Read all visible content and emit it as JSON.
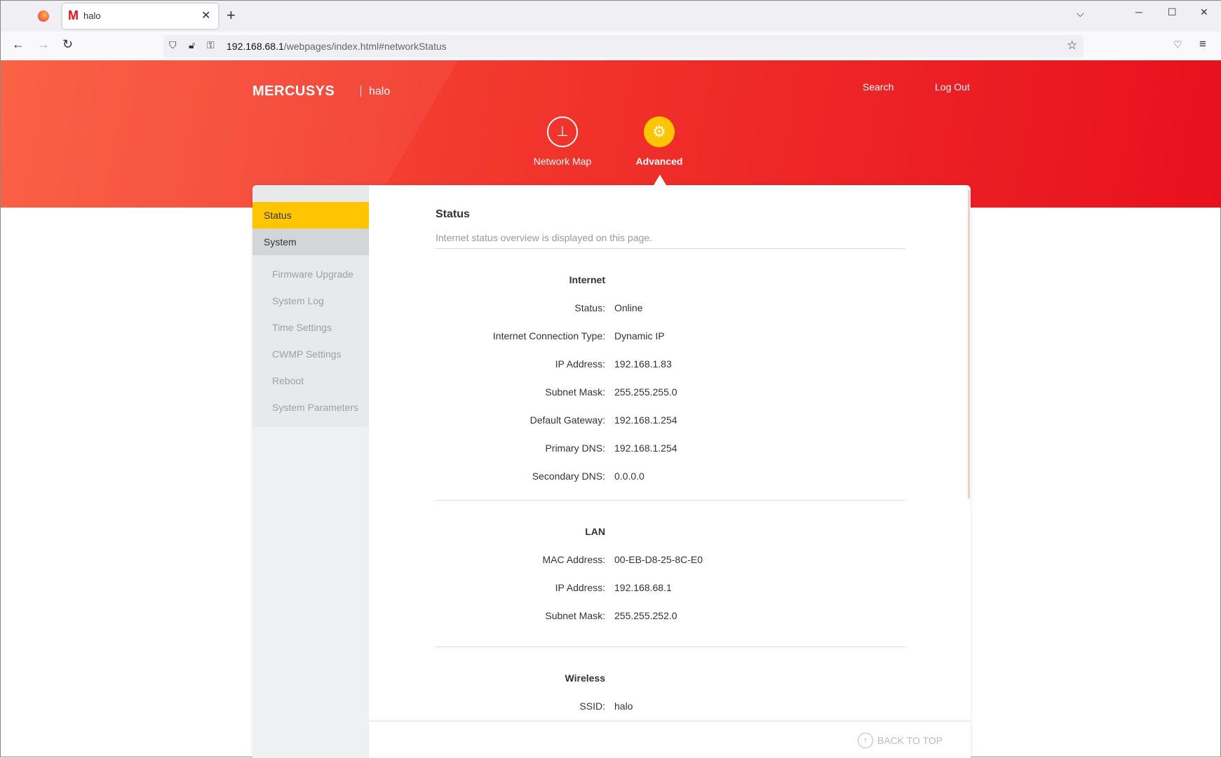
{
  "browser": {
    "tab_title": "halo",
    "url_host": "192.168.68.1",
    "url_path": "/webpages/index.html#networkStatus"
  },
  "header": {
    "brand": "MERCUSYS",
    "model": "halo",
    "search": "Search",
    "logout": "Log Out",
    "nav": [
      {
        "label": "Network Map",
        "icon": "network-map-icon"
      },
      {
        "label": "Advanced",
        "icon": "gear-icon",
        "active": true
      }
    ]
  },
  "colors": {
    "accent": "#ffc600",
    "brand_red": "#ee2024"
  },
  "sidebar": {
    "items": [
      {
        "label": "Status",
        "active": true
      },
      {
        "label": "System"
      }
    ],
    "sub": [
      "Firmware Upgrade",
      "System Log",
      "Time Settings",
      "CWMP Settings",
      "Reboot",
      "System Parameters"
    ]
  },
  "main": {
    "title": "Status",
    "desc": "Internet status overview is displayed on this page.",
    "internet": {
      "heading": "Internet",
      "rows": [
        [
          "Status:",
          "Online"
        ],
        [
          "Internet Connection Type:",
          "Dynamic IP"
        ],
        [
          "IP Address:",
          "192.168.1.83"
        ],
        [
          "Subnet Mask:",
          "255.255.255.0"
        ],
        [
          "Default Gateway:",
          "192.168.1.254"
        ],
        [
          "Primary DNS:",
          "192.168.1.254"
        ],
        [
          "Secondary DNS:",
          "0.0.0.0"
        ]
      ]
    },
    "lan": {
      "heading": "LAN",
      "rows": [
        [
          "MAC Address:",
          "00-EB-D8-25-8C-E0"
        ],
        [
          "IP Address:",
          "192.168.68.1"
        ],
        [
          "Subnet Mask:",
          "255.255.252.0"
        ]
      ]
    },
    "wireless": {
      "heading": "Wireless",
      "rows": [
        [
          "SSID:",
          "halo"
        ]
      ]
    }
  },
  "footer": {
    "back_to_top": "BACK TO TOP"
  }
}
